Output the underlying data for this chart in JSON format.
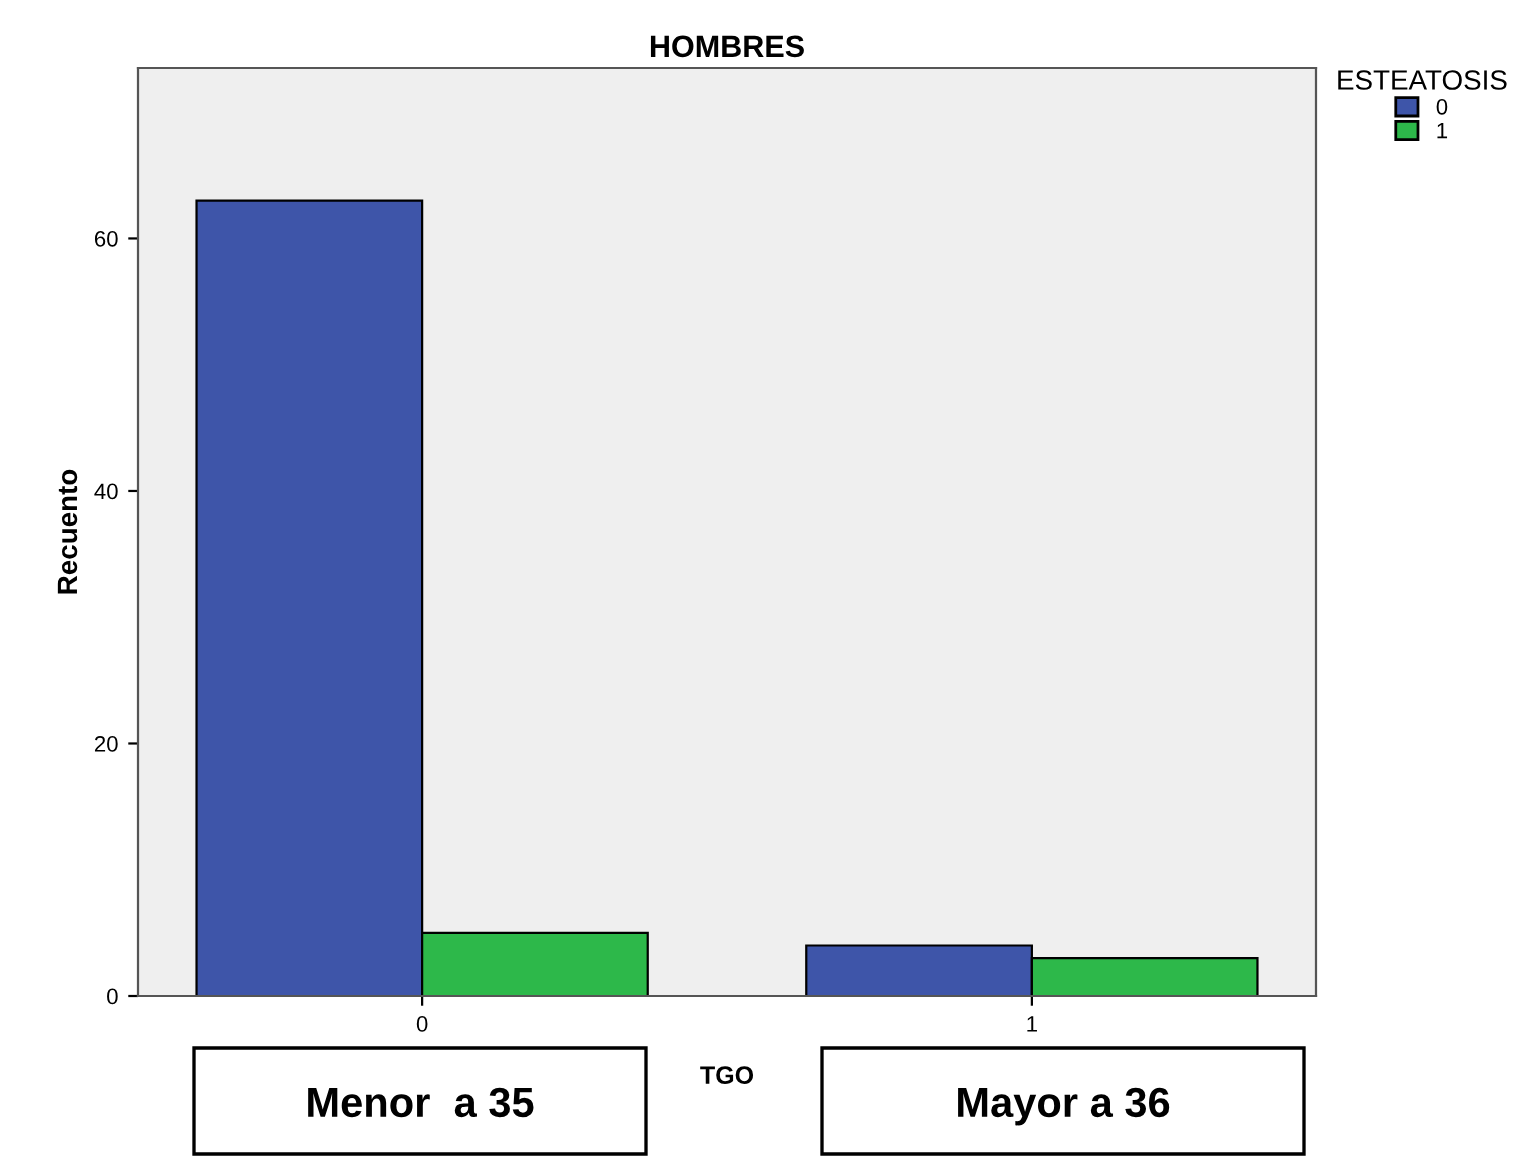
{
  "chart_data": {
    "type": "bar",
    "title": "HOMBRES",
    "xlabel": "TGO",
    "ylabel": "Recuento",
    "legend_title": "ESTEATOSIS",
    "categories": [
      "0",
      "1"
    ],
    "series": [
      {
        "name": "0",
        "color": "#3e55a9",
        "values": [
          63,
          4
        ]
      },
      {
        "name": "1",
        "color": "#2db84a",
        "values": [
          5,
          3
        ]
      }
    ],
    "ylim": [
      0,
      73.5
    ],
    "yticks": [
      0,
      20,
      40,
      60
    ],
    "grid": false,
    "legend": "top right",
    "annotations": [
      "Menor  a 35",
      "Mayor a 36"
    ]
  }
}
